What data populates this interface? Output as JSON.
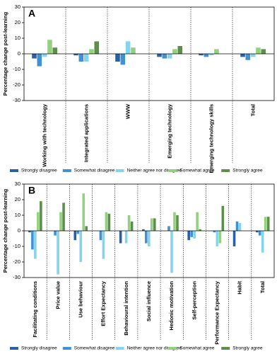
{
  "chart_data": [
    {
      "type": "bar",
      "title": "A",
      "ylabel": "Percentage change post-learning",
      "categories": [
        "Working with technology",
        "Integrated applications",
        "WWW",
        "Emerging technology",
        "Emerging technology skills",
        "Total"
      ],
      "series": [
        {
          "name": "Strongly disagree",
          "color": "#2b5fa8",
          "values": [
            -3,
            -1,
            -5,
            -2,
            -1,
            -2
          ]
        },
        {
          "name": "Somewhat disagree",
          "color": "#3f90d4",
          "values": [
            -8,
            -5,
            -7,
            -3,
            -2,
            -4
          ]
        },
        {
          "name": "Neither agree nor disagree",
          "color": "#86d4ec",
          "values": [
            -2,
            -5,
            8,
            -3,
            -1,
            -2
          ]
        },
        {
          "name": "Somewhat agree",
          "color": "#93d27c",
          "values": [
            9,
            3,
            4,
            3,
            3,
            4
          ]
        },
        {
          "name": "Strongly agree",
          "color": "#5b8f4b",
          "values": [
            4,
            8,
            0,
            5,
            0,
            3
          ]
        }
      ],
      "ylim": [
        -30,
        30
      ],
      "yticks": [
        -30,
        -20,
        -10,
        0,
        10,
        20,
        30
      ]
    },
    {
      "type": "bar",
      "title": "B",
      "ylabel": "Percentage change post-learning",
      "categories": [
        "Facilitating conditions",
        "Price value",
        "Use behaviour",
        "Effort Expectancy",
        "Behavioural intention",
        "Social influence",
        "Hedonic motivation",
        "Self-perception",
        "Performance Expectancy",
        "Habit",
        "Total"
      ],
      "series": [
        {
          "name": "Strongly disagree",
          "color": "#2b5fa8",
          "values": [
            -1,
            0,
            -6,
            0,
            -8,
            1,
            0,
            -6,
            0,
            -10,
            -1
          ]
        },
        {
          "name": "Somewhat disagree",
          "color": "#3f90d4",
          "values": [
            -12,
            -3,
            -2,
            -6,
            0,
            -8,
            3,
            -4,
            -1,
            6,
            -3
          ]
        },
        {
          "name": "Neither agree nor disagree",
          "color": "#86d4ec",
          "values": [
            -18,
            -28,
            -20,
            -18,
            -8,
            -10,
            -27,
            -5,
            -10,
            5,
            -14
          ]
        },
        {
          "name": "Somewhat agree",
          "color": "#93d27c",
          "values": [
            12,
            12,
            24,
            12,
            10,
            8,
            12,
            12,
            -8,
            0,
            9
          ]
        },
        {
          "name": "Strongly agree",
          "color": "#5b8f4b",
          "values": [
            19,
            18,
            3,
            11,
            6,
            8,
            10,
            1,
            16,
            0,
            9
          ]
        }
      ],
      "ylim": [
        -30,
        30
      ],
      "yticks": [
        -30,
        -20,
        -10,
        0,
        10,
        20,
        30
      ]
    }
  ]
}
